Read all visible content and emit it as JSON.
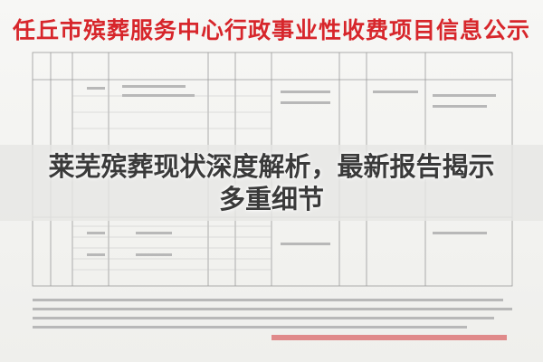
{
  "notice": {
    "title": "任丘市殡葬服务中心行政事业性收费项目信息公示"
  },
  "overlay": {
    "headline": "莱芜殡葬现状深度解析，最新报告揭示多重细节"
  }
}
